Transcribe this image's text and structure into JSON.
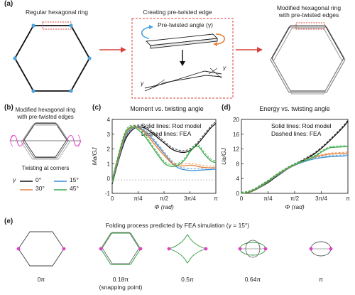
{
  "panel_a": {
    "label": "(a)",
    "step1_title": "Regular hexagonal ring",
    "step2_title": "Creating pre-twisted edge",
    "step2_angle_label": "Pre-twisted angle (γ)",
    "step2_gamma_left": "γ",
    "step2_gamma_right": "γ",
    "step3_title_line1": "Modified hexagonal ring",
    "step3_title_line2": "with pre-twisted edges"
  },
  "panel_b": {
    "label": "(b)",
    "title_line1": "Modified hexagonal ring",
    "title_line2": "with pre-twisted edges",
    "caption": "Twisting at corners",
    "legend_symbol": "γ",
    "legend": [
      {
        "label": "0°",
        "color": "#111111"
      },
      {
        "label": "15°",
        "color": "#3a8fd8"
      },
      {
        "label": "30°",
        "color": "#e8823a"
      },
      {
        "label": "45°",
        "color": "#3aa84a"
      }
    ]
  },
  "chart_data": [
    {
      "type": "line",
      "panel": "(c)",
      "title": "Moment vs. twisting angle",
      "annotation_line1": "Solid lines: Rod model",
      "annotation_line2": "Dashed lines: FEA",
      "xlabel": "Φ (rad)",
      "ylabel": "Ma/GJ",
      "xlim": [
        0,
        3.1416
      ],
      "ylim": [
        -1,
        4.5
      ],
      "xticks": [
        "0",
        "π/4",
        "π/2",
        "3π/4",
        "π"
      ],
      "yticks": [
        "-1",
        "0",
        "1",
        "2",
        "3",
        "4"
      ],
      "x": [
        0,
        0.2,
        0.4,
        0.6,
        0.8,
        1.0,
        1.2,
        1.4,
        1.6,
        1.8,
        2.0,
        2.2,
        2.4,
        2.6,
        2.8,
        3.0,
        3.1416
      ],
      "series": [
        {
          "name": "0°",
          "color": "#111111",
          "values": [
            -0.3,
            1.5,
            3.0,
            3.7,
            3.95,
            3.85,
            3.5,
            3.1,
            2.7,
            2.3,
            2.1,
            2.05,
            2.25,
            2.7,
            3.3,
            3.9,
            4.2
          ]
        },
        {
          "name": "15°",
          "color": "#3a8fd8",
          "values": [
            -0.2,
            1.6,
            3.2,
            3.85,
            3.9,
            3.6,
            3.1,
            2.5,
            1.9,
            1.3,
            0.9,
            0.75,
            0.7,
            0.72,
            0.75,
            0.78,
            0.8
          ]
        },
        {
          "name": "30°",
          "color": "#e8823a",
          "values": [
            -0.15,
            1.7,
            3.35,
            3.9,
            3.85,
            3.5,
            2.9,
            2.3,
            1.75,
            1.25,
            1.05,
            1.05,
            1.1,
            1.0,
            0.92,
            0.9,
            0.9
          ]
        },
        {
          "name": "45°",
          "color": "#3aa84a",
          "values": [
            -0.1,
            1.9,
            3.5,
            3.95,
            3.7,
            3.2,
            2.5,
            1.8,
            1.2,
            1.0,
            1.1,
            1.5,
            2.2,
            2.5,
            1.9,
            1.4,
            1.3
          ]
        }
      ]
    },
    {
      "type": "line",
      "panel": "(d)",
      "title": "Energy vs. twisting angle",
      "annotation_line1": "Solid lines: Rod model",
      "annotation_line2": "Dashed lines: FEA",
      "xlabel": "Φ (rad)",
      "ylabel": "Ua/GJ",
      "xlim": [
        0,
        3.1416
      ],
      "ylim": [
        0,
        20
      ],
      "xticks": [
        "0",
        "π/4",
        "π/2",
        "3π/4",
        "π"
      ],
      "yticks": [
        "0",
        "4",
        "8",
        "12",
        "16",
        "20"
      ],
      "x": [
        0,
        0.2,
        0.4,
        0.6,
        0.8,
        1.0,
        1.2,
        1.4,
        1.6,
        1.8,
        2.0,
        2.2,
        2.4,
        2.6,
        2.8,
        3.0,
        3.1416
      ],
      "series": [
        {
          "name": "0°",
          "color": "#111111",
          "values": [
            0,
            0.2,
            0.9,
            1.9,
            3.0,
            4.3,
            5.6,
            6.8,
            7.8,
            8.8,
            9.8,
            11.0,
            12.5,
            14.2,
            16.0,
            17.9,
            19.5
          ]
        },
        {
          "name": "15°",
          "color": "#3a8fd8",
          "values": [
            0,
            0.25,
            1.0,
            2.0,
            3.2,
            4.5,
            5.7,
            6.8,
            7.7,
            8.4,
            9.0,
            9.4,
            9.7,
            9.9,
            10.0,
            10.1,
            10.2
          ]
        },
        {
          "name": "30°",
          "color": "#e8823a",
          "values": [
            0,
            0.25,
            1.0,
            2.1,
            3.3,
            4.6,
            5.8,
            6.9,
            7.8,
            8.6,
            9.3,
            9.9,
            10.3,
            10.6,
            10.7,
            10.8,
            10.9
          ]
        },
        {
          "name": "45°",
          "color": "#3aa84a",
          "values": [
            0,
            0.3,
            1.1,
            2.2,
            3.4,
            4.7,
            5.9,
            7.0,
            7.9,
            8.6,
            9.3,
            10.2,
            11.4,
            12.3,
            12.5,
            12.6,
            12.6
          ]
        }
      ]
    }
  ],
  "panel_e": {
    "label": "(e)",
    "title": "Folding process predicted by FEA simulation (γ = 15°)",
    "stages": [
      {
        "label": "0π",
        "sublabel": ""
      },
      {
        "label": "0.18π",
        "sublabel": "(snapping point)"
      },
      {
        "label": "0.5π",
        "sublabel": ""
      },
      {
        "label": "0.64π",
        "sublabel": ""
      },
      {
        "label": "π",
        "sublabel": ""
      }
    ]
  },
  "colors": {
    "arrow": "#d9403a",
    "node_blue": "#4aa3df",
    "node_pink": "#e040c8",
    "ring_green": "#2e9a3a",
    "dashed_box": "#d9403a"
  }
}
